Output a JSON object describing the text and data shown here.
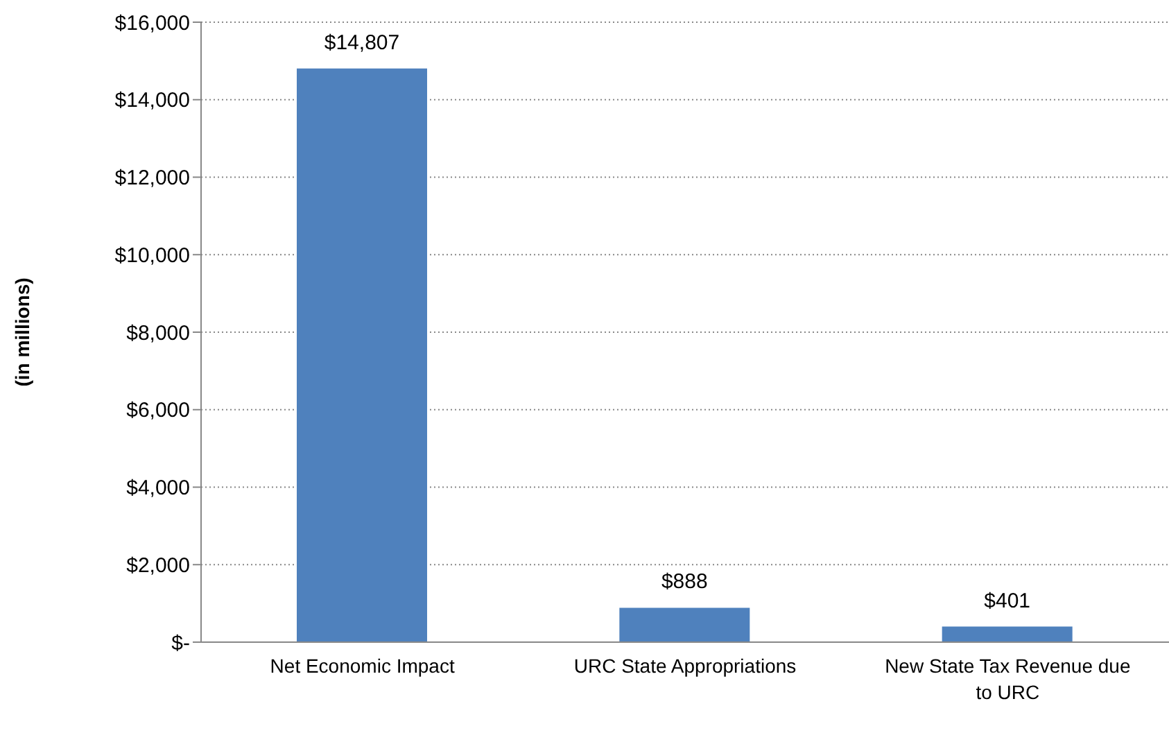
{
  "chart_data": {
    "type": "bar",
    "ylabel": "(in millions)",
    "categories": [
      "Net Economic Impact",
      "URC State Appropriations",
      "New State Tax Revenue due to URC"
    ],
    "values": [
      14807,
      888,
      401
    ],
    "color": "#4f81bd",
    "value_labels": [
      "$14,807",
      "$888",
      "$401"
    ],
    "ylim": [
      0,
      16000
    ],
    "yticks": [
      {
        "value": 0,
        "label": "$-"
      },
      {
        "value": 2000,
        "label": "$2,000"
      },
      {
        "value": 4000,
        "label": "$4,000"
      },
      {
        "value": 6000,
        "label": "$6,000"
      },
      {
        "value": 8000,
        "label": "$8,000"
      },
      {
        "value": 10000,
        "label": "$10,000"
      },
      {
        "value": 12000,
        "label": "$12,000"
      },
      {
        "value": 14000,
        "label": "$14,000"
      },
      {
        "value": 16000,
        "label": "$16,000"
      }
    ],
    "grid": "y"
  }
}
